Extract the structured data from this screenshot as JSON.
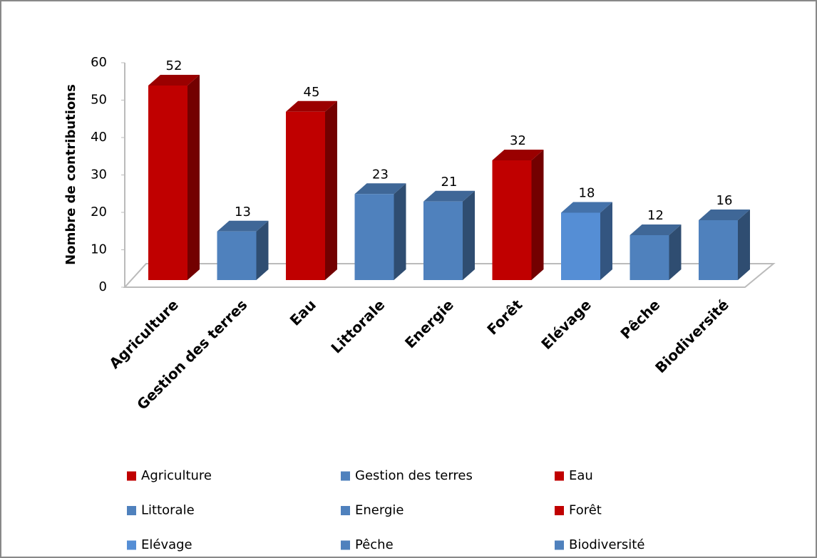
{
  "chart_data": {
    "type": "bar3d",
    "ylabel": "Nombre de contributions",
    "categories": [
      "Agriculture",
      "Gestion des terres",
      "Eau",
      "Littorale",
      "Energie",
      "Forêt",
      "Elévage",
      "Pêche",
      "Biodiversité"
    ],
    "values": [
      52,
      13,
      45,
      23,
      21,
      32,
      18,
      12,
      16
    ],
    "colors": [
      "#c00000",
      "#4f81bd",
      "#c00000",
      "#4f81bd",
      "#4f81bd",
      "#c00000",
      "#558ed5",
      "#4f81bd",
      "#4f81bd"
    ],
    "ylim": [
      0,
      60
    ],
    "yticks": [
      0,
      10,
      20,
      30,
      40,
      50,
      60
    ],
    "grid": false,
    "legend": "bottom"
  }
}
